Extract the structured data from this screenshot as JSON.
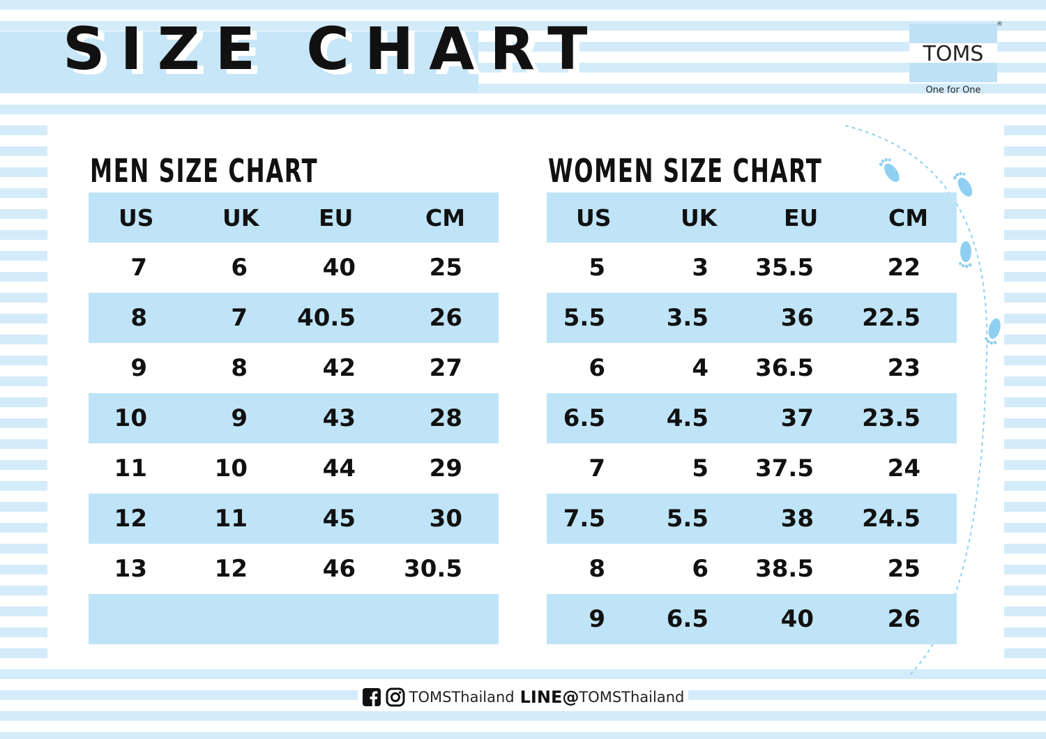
{
  "header": {
    "title": "SIZE CHART",
    "brand": "TOMS",
    "brand_mark": "®",
    "tagline": "One for One"
  },
  "men": {
    "title": "MEN SIZE CHART",
    "columns": [
      "US",
      "UK",
      "EU",
      "CM"
    ],
    "rows": [
      [
        "7",
        "6",
        "40",
        "25"
      ],
      [
        "8",
        "7",
        "40.5",
        "26"
      ],
      [
        "9",
        "8",
        "42",
        "27"
      ],
      [
        "10",
        "9",
        "43",
        "28"
      ],
      [
        "11",
        "10",
        "44",
        "29"
      ],
      [
        "12",
        "11",
        "45",
        "30"
      ],
      [
        "13",
        "12",
        "46",
        "30.5"
      ],
      [
        "",
        "",
        "",
        ""
      ]
    ]
  },
  "women": {
    "title": "WOMEN SIZE CHART",
    "columns": [
      "US",
      "UK",
      "EU",
      "CM"
    ],
    "rows": [
      [
        "5",
        "3",
        "35.5",
        "22"
      ],
      [
        "5.5",
        "3.5",
        "36",
        "22.5"
      ],
      [
        "6",
        "4",
        "36.5",
        "23"
      ],
      [
        "6.5",
        "4.5",
        "37",
        "23.5"
      ],
      [
        "7",
        "5",
        "37.5",
        "24"
      ],
      [
        "7.5",
        "5.5",
        "38",
        "24.5"
      ],
      [
        "8",
        "6",
        "38.5",
        "25"
      ],
      [
        "9",
        "6.5",
        "40",
        "26"
      ]
    ]
  },
  "footer": {
    "social_handle": "TOMSThailand",
    "line_label": "LINE@",
    "line_handle": "TOMSThailand",
    "icons": [
      "facebook-icon",
      "instagram-icon"
    ]
  },
  "colors": {
    "stripe": "#d4ecfa",
    "row_shade": "#bfe4f8",
    "title_band": "#c7e6f8",
    "footprint": "#8fd0f2"
  }
}
